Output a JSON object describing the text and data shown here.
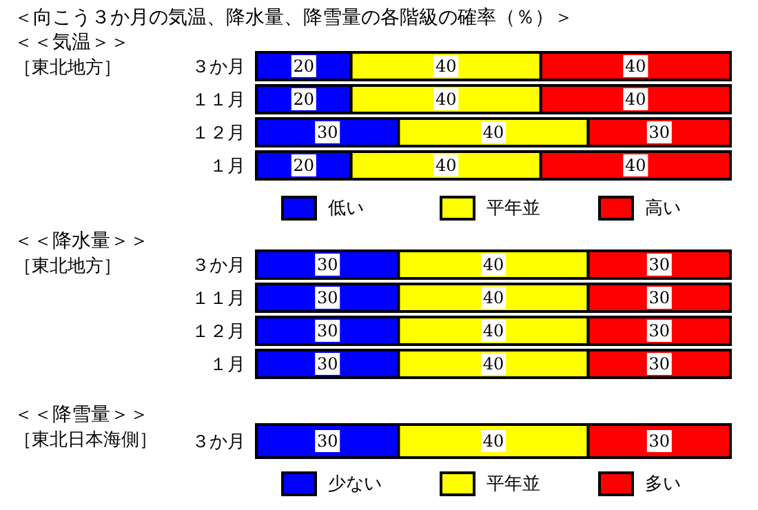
{
  "chart_data": [
    {
      "type": "bar",
      "orientation": "horizontal",
      "stacked": true,
      "title": "＜向こう３か月の気温、降水量、降雪量の各階級の確率（％）＞",
      "subtitle": "＜＜気温＞＞",
      "annotations": [
        "［東北地方］"
      ],
      "categories": [
        "３か月",
        "１１月",
        "１２月",
        "１月"
      ],
      "data_labels": true,
      "legend": "bottom",
      "series": [
        {
          "name": "低い",
          "color": "#0000ff",
          "values": [
            20,
            20,
            30,
            20
          ]
        },
        {
          "name": "平年並",
          "color": "#ffff00",
          "values": [
            40,
            40,
            40,
            40
          ]
        },
        {
          "name": "高い",
          "color": "#ff0000",
          "values": [
            40,
            40,
            30,
            40
          ]
        }
      ]
    },
    {
      "type": "bar",
      "orientation": "horizontal",
      "stacked": true,
      "title": "＜＜降水量＞＞",
      "annotations": [
        "［東北地方］"
      ],
      "categories": [
        "３か月",
        "１１月",
        "１２月",
        "１月"
      ],
      "data_labels": true,
      "series": [
        {
          "color": "#0000ff",
          "values": [
            30,
            30,
            30,
            30
          ]
        },
        {
          "color": "#ffff00",
          "values": [
            40,
            40,
            40,
            40
          ]
        },
        {
          "color": "#ff0000",
          "values": [
            30,
            30,
            30,
            30
          ]
        }
      ]
    },
    {
      "type": "bar",
      "orientation": "horizontal",
      "stacked": true,
      "title": "＜＜降雪量＞＞",
      "annotations": [
        "［東北日本海側］"
      ],
      "categories": [
        "３か月"
      ],
      "data_labels": true,
      "legend": "bottom",
      "series": [
        {
          "name": "少ない",
          "color": "#0000ff",
          "values": [
            30
          ]
        },
        {
          "name": "平年並",
          "color": "#ffff00",
          "values": [
            40
          ]
        },
        {
          "name": "多い",
          "color": "#ff0000",
          "values": [
            30
          ]
        }
      ]
    }
  ]
}
